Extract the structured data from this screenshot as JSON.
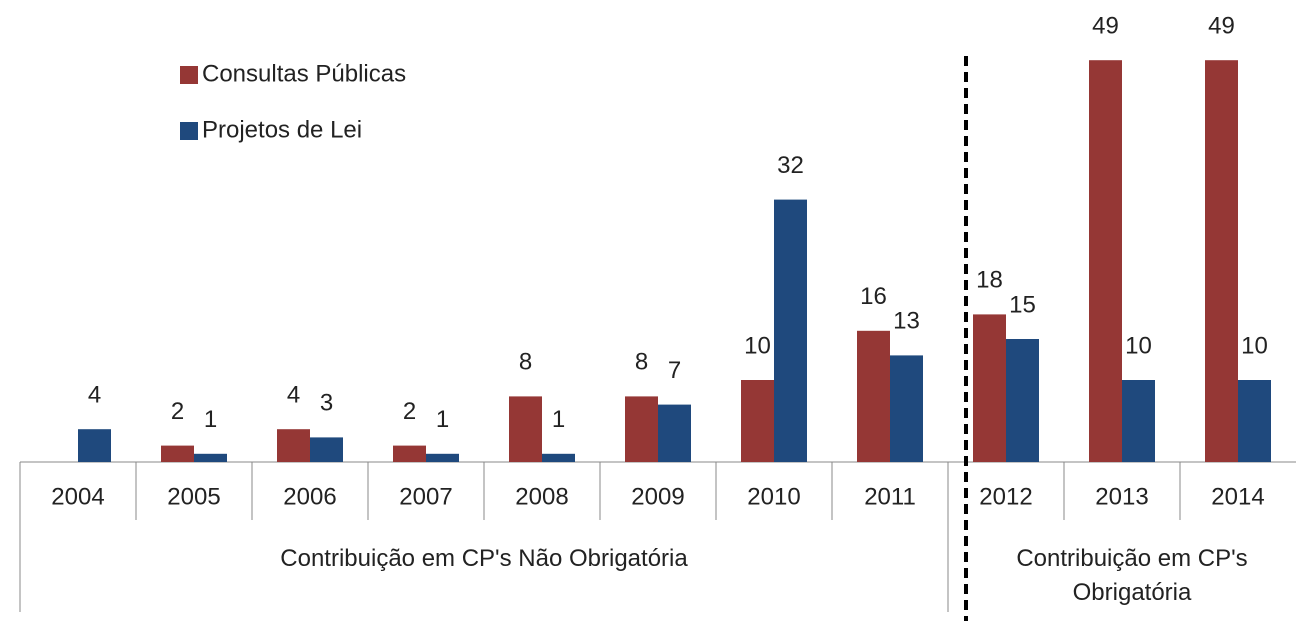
{
  "chart_data": {
    "type": "bar",
    "categories": [
      "2004",
      "2005",
      "2006",
      "2007",
      "2008",
      "2009",
      "2010",
      "2011",
      "2012",
      "2013",
      "2014"
    ],
    "series": [
      {
        "name": "Consultas Públicas",
        "color": "#953735",
        "values": [
          null,
          2,
          4,
          2,
          8,
          8,
          10,
          16,
          18,
          49,
          49
        ]
      },
      {
        "name": "Projetos de Lei",
        "color": "#1f497d",
        "values": [
          4,
          1,
          3,
          1,
          1,
          7,
          32,
          13,
          15,
          10,
          10
        ]
      }
    ],
    "groups": [
      {
        "label": "Contribuição em CP's Não Obrigatória",
        "categories": [
          "2004",
          "2005",
          "2006",
          "2007",
          "2008",
          "2009",
          "2010",
          "2011"
        ]
      },
      {
        "label": "Contribuição em CP's Obrigatória",
        "categories": [
          "2012",
          "2013",
          "2014"
        ]
      }
    ],
    "ylim": [
      0,
      55
    ],
    "legend": "top-left"
  }
}
